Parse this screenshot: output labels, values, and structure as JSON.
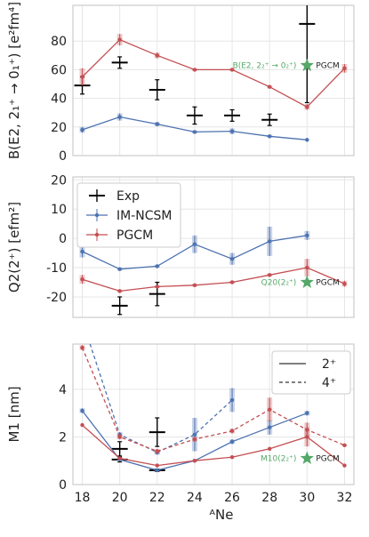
{
  "colors": {
    "exp": "#000000",
    "imncsm": "#4c72b0",
    "pgcm": "#c44e52",
    "star": "#55a868",
    "grid": "#e6e6e6",
    "frame": "#cccccc"
  },
  "xlabel": "ᴬNe",
  "xticks": [
    18,
    20,
    22,
    24,
    26,
    28,
    30,
    32
  ],
  "chart_data": [
    {
      "type": "line",
      "ylabel": "B(E2, 2₁⁺ → 0₁⁺) [e²fm⁴]",
      "ylim": [
        0,
        105
      ],
      "yticks": [
        0,
        20,
        40,
        60,
        80
      ],
      "annotation": "B(E2, 2₂⁺ → 0₂⁺)",
      "star_label": "PGCM",
      "star": {
        "x": 30,
        "y": 63
      },
      "series": [
        {
          "name": "Exp",
          "x": [
            18,
            20,
            22,
            24,
            26,
            28,
            30
          ],
          "y": [
            49,
            65,
            46,
            28,
            28,
            25,
            92
          ],
          "err": [
            6,
            4,
            7,
            6,
            4,
            4,
            55
          ]
        },
        {
          "name": "IM-NCSM",
          "x": [
            18,
            20,
            22,
            24,
            26,
            28,
            30
          ],
          "y": [
            18,
            27,
            22,
            16.5,
            17,
            13.5,
            11
          ],
          "err": [
            2,
            2.5,
            1.5,
            1,
            2,
            1,
            0
          ]
        },
        {
          "name": "PGCM",
          "x": [
            18,
            20,
            22,
            24,
            26,
            28,
            30,
            32
          ],
          "y": [
            55,
            81,
            70,
            60,
            60,
            48,
            34,
            61
          ],
          "err": [
            6,
            4,
            2,
            1,
            1,
            1,
            2,
            3
          ]
        }
      ]
    },
    {
      "type": "line",
      "ylabel": "Q2(2⁺) [efm²]",
      "ylim": [
        -27,
        21
      ],
      "yticks": [
        -20,
        -10,
        0,
        10,
        20
      ],
      "annotation": "Q20(2₂⁺)",
      "star_label": "PGCM",
      "star": {
        "x": 30,
        "y": -15
      },
      "legend": {
        "position": "top-left",
        "entries": [
          "Exp",
          "IM-NCSM",
          "PGCM"
        ]
      },
      "series": [
        {
          "name": "Exp",
          "x": [
            20,
            22
          ],
          "y": [
            -23,
            -19
          ],
          "err": [
            3,
            4
          ]
        },
        {
          "name": "IM-NCSM",
          "x": [
            18,
            20,
            22,
            24,
            26,
            28,
            30
          ],
          "y": [
            -4.5,
            -10.5,
            -9.5,
            -2,
            -7,
            -1,
            1
          ],
          "err": [
            2,
            0.5,
            0.5,
            3,
            2,
            5,
            1.5
          ]
        },
        {
          "name": "PGCM",
          "x": [
            18,
            20,
            22,
            24,
            26,
            28,
            30,
            32
          ],
          "y": [
            -14,
            -18,
            -16.5,
            -16,
            -15,
            -12.5,
            -10,
            -15.5
          ],
          "err": [
            1.5,
            0.5,
            0.5,
            0.5,
            0.5,
            0.5,
            3,
            1
          ]
        }
      ]
    },
    {
      "type": "line",
      "ylabel": "M1 [nm]",
      "ylim": [
        0,
        5.9
      ],
      "yticks": [
        0,
        2,
        4
      ],
      "annotation": "M10(2₂⁺)",
      "star_label": "PGCM",
      "star": {
        "x": 30,
        "y": 1.1
      },
      "legend": {
        "position": "top-right",
        "entries": [
          "2⁺",
          "4⁺"
        ]
      },
      "series": [
        {
          "name": "Exp",
          "x": [
            20,
            22
          ],
          "y": [
            1.5,
            2.2
          ],
          "err": [
            0.3,
            0.6
          ]
        },
        {
          "name": "Exp",
          "x": [
            20,
            22
          ],
          "y": [
            1.05,
            0.6
          ],
          "err": [
            0.1,
            0.05
          ]
        },
        {
          "name": "IM-NCSM 2⁺",
          "x": [
            18,
            20,
            22,
            24,
            26,
            28,
            30
          ],
          "y": [
            3.1,
            1.05,
            0.6,
            1.0,
            1.8,
            2.4,
            3.0
          ],
          "err": [
            0.1,
            0.05,
            0.05,
            0.05,
            0.1,
            0.3,
            0.1
          ]
        },
        {
          "name": "IM-NCSM 4⁺",
          "x": [
            18,
            20,
            22,
            24,
            26
          ],
          "y": [
            6.9,
            2.1,
            1.35,
            2.1,
            3.55
          ],
          "err": [
            0.1,
            0.1,
            0.1,
            0.7,
            0.5
          ]
        },
        {
          "name": "PGCM 2⁺",
          "x": [
            18,
            20,
            22,
            24,
            26,
            28,
            30,
            32
          ],
          "y": [
            2.5,
            1.1,
            0.8,
            1.0,
            1.15,
            1.5,
            2.0,
            0.8
          ],
          "err": [
            0,
            0,
            0,
            0,
            0,
            0,
            0.4,
            0
          ]
        },
        {
          "name": "PGCM 4⁺",
          "x": [
            18,
            20,
            22,
            24,
            26,
            28,
            30,
            32
          ],
          "y": [
            5.75,
            2.0,
            1.4,
            1.9,
            2.25,
            3.15,
            2.3,
            1.65
          ],
          "err": [
            0.1,
            0.1,
            0.1,
            0.1,
            0.1,
            0.5,
            0.3,
            0.05
          ]
        }
      ]
    }
  ]
}
